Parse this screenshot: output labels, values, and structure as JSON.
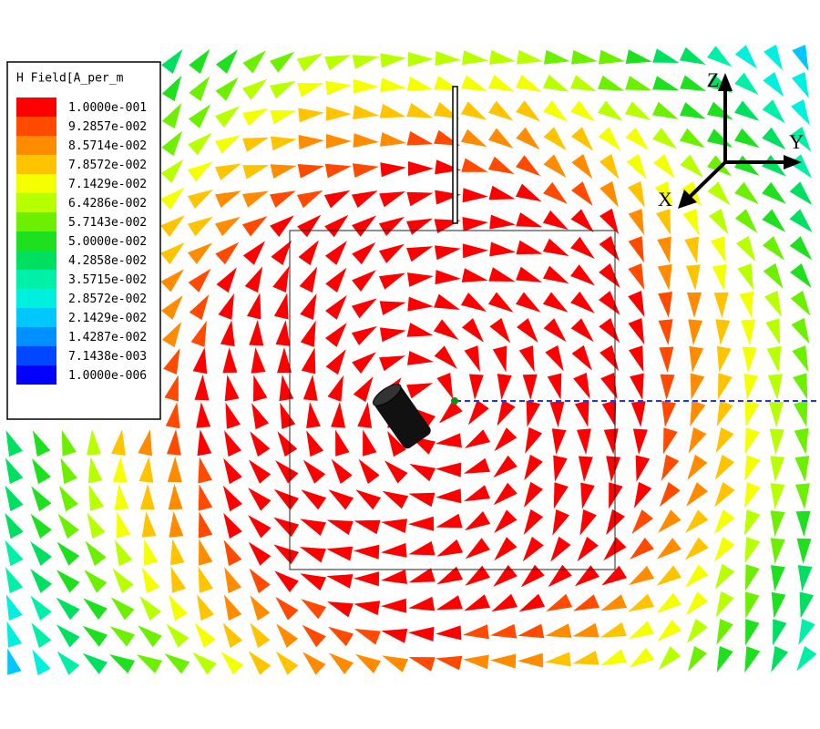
{
  "legend": {
    "title": "H Field[A_per_m",
    "items": [
      {
        "label": "1.0000e-001",
        "color": "#ff0000"
      },
      {
        "label": "9.2857e-002",
        "color": "#ff4a00"
      },
      {
        "label": "8.5714e-002",
        "color": "#ff8c00"
      },
      {
        "label": "7.8572e-002",
        "color": "#ffc400"
      },
      {
        "label": "7.1429e-002",
        "color": "#f4ff00"
      },
      {
        "label": "6.4286e-002",
        "color": "#b8ff00"
      },
      {
        "label": "5.7143e-002",
        "color": "#6cf000"
      },
      {
        "label": "5.0000e-002",
        "color": "#1ee01e"
      },
      {
        "label": "4.2858e-002",
        "color": "#00e060"
      },
      {
        "label": "3.5715e-002",
        "color": "#00f0a8"
      },
      {
        "label": "2.8572e-002",
        "color": "#00f0e0"
      },
      {
        "label": "2.1429e-002",
        "color": "#00c8ff"
      },
      {
        "label": "1.4287e-002",
        "color": "#0090ff"
      },
      {
        "label": "7.1438e-003",
        "color": "#0048ff"
      },
      {
        "label": "1.0000e-006",
        "color": "#0000ff"
      }
    ]
  },
  "axes": {
    "z": "Z",
    "y": "Y",
    "x": "X"
  }
}
